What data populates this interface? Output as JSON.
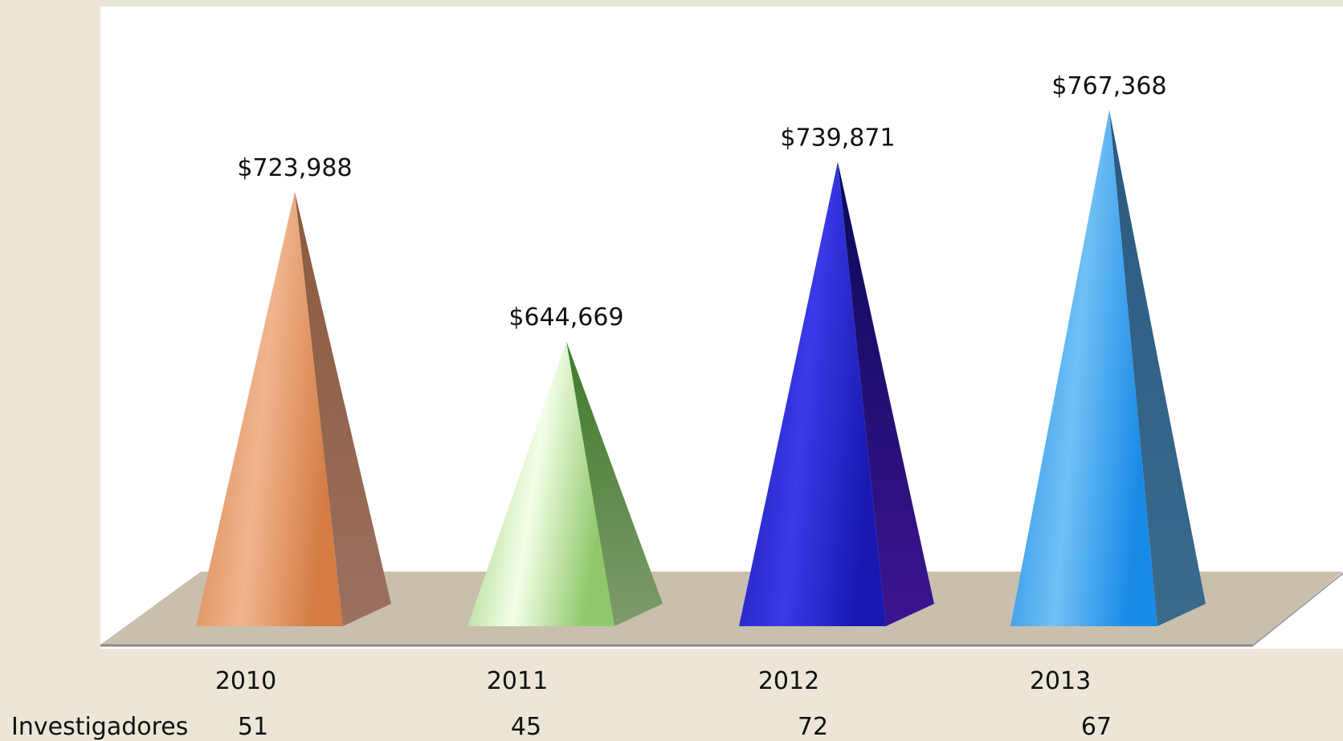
{
  "chart_data": {
    "type": "bar",
    "shape": "pyramid",
    "title": "",
    "xlabel": "",
    "ylabel": "",
    "categories": [
      "2010",
      "2011",
      "2012",
      "2013"
    ],
    "series": [
      {
        "values": [
          723988,
          644669,
          739871,
          767368
        ],
        "labels": [
          "$723,988",
          "$644,669",
          "$739,871",
          "$767,368"
        ]
      }
    ],
    "grid": false,
    "legend": "none",
    "colors": [
      {
        "light": "#f0b58e",
        "mid": "#d47c44",
        "dark": "#8c5a3c",
        "side": "#9a7060"
      },
      {
        "light": "#f4ffe8",
        "mid": "#8fc86a",
        "dark": "#3d7a2a",
        "side": "#7f9a6c"
      },
      {
        "light": "#3a3ae8",
        "mid": "#1818b0",
        "dark": "#0a0a5a",
        "side": "#3c1490"
      },
      {
        "light": "#70c0f4",
        "mid": "#1a8ae8",
        "dark": "#2a5a80",
        "side": "#3a6a8c"
      }
    ],
    "floor_color": "#c9bfad",
    "table_row": {
      "label": "Investigadores",
      "values": [
        "51",
        "45",
        "72",
        "67"
      ]
    }
  }
}
